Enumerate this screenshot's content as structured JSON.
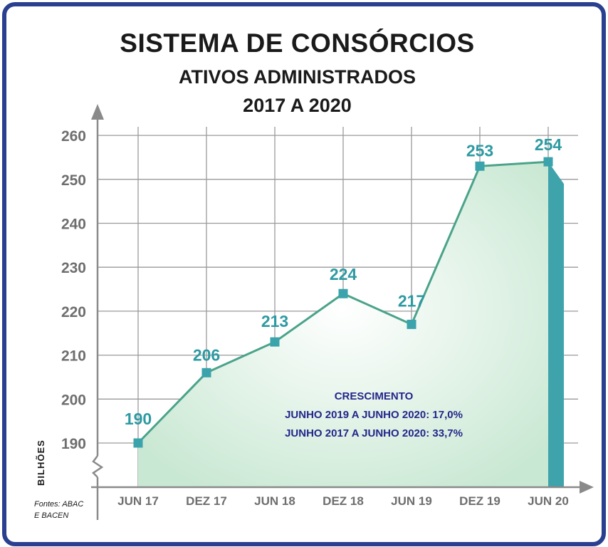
{
  "chart_data": {
    "type": "area",
    "title": "SISTEMA DE CONSÓRCIOS",
    "subtitle": "ATIVOS ADMINISTRADOS",
    "period": "2017 A 2020",
    "categories": [
      "JUN 17",
      "DEZ 17",
      "JUN 18",
      "DEZ 18",
      "JUN 19",
      "DEZ 19",
      "JUN 20"
    ],
    "values": [
      190,
      206,
      213,
      224,
      217,
      253,
      254
    ],
    "labels": [
      "190",
      "206",
      "213",
      "224",
      "217",
      "253",
      "254"
    ],
    "yticks": [
      "260",
      "250",
      "240",
      "230",
      "220",
      "210",
      "200",
      "190"
    ],
    "ylabel": "BILHÕES",
    "xlabel": "",
    "ylim": [
      183,
      262
    ],
    "y_axis_break": true,
    "grid": true,
    "legend": "none",
    "annotation": {
      "heading": "CRESCIMENTO",
      "lines": [
        "JUNHO 2019 A JUNHO 2020: 17,0%",
        "JUNHO 2017 A JUNHO 2020: 33,7%"
      ]
    },
    "source_lines": [
      "Fontes: ABAC",
      "E BACEN"
    ],
    "colors": {
      "line": "#4aa38a",
      "marker": "#3aa3ab",
      "area_edge": "#c9e8d3",
      "area_center": "#ffffff",
      "right_edge": "#3fa3ab",
      "labels": "#2e9aa2",
      "annotation": "#23268a",
      "frame": "#2a3f8f",
      "axis": "#8a8a8a"
    }
  }
}
